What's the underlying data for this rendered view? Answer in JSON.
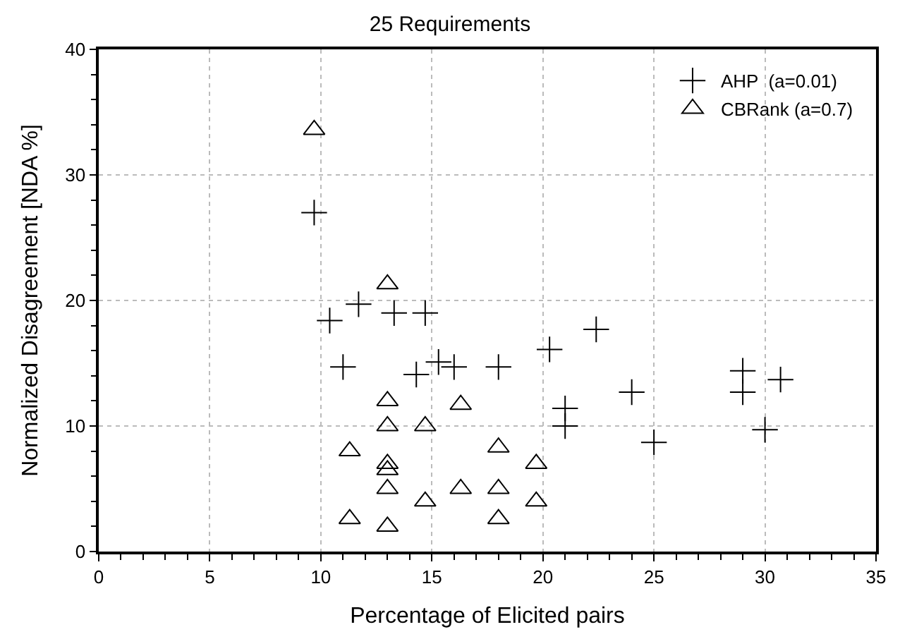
{
  "chart_data": {
    "type": "scatter",
    "title": "25 Requirements",
    "xlabel": "Percentage of Elicited pairs",
    "ylabel": "Normalized Disagreement [NDA %]",
    "xlim": [
      0,
      35
    ],
    "xticks": [
      0,
      5,
      10,
      15,
      20,
      25,
      30,
      35
    ],
    "ylim": [
      0,
      40
    ],
    "yticks": [
      0,
      10,
      20,
      30,
      40
    ],
    "grid": true,
    "legend": "top right",
    "series": [
      {
        "name": "AHP  (a=0.01)",
        "color": "#000000",
        "marker": "cross",
        "x": [
          9.7,
          10.4,
          11.7,
          13.3,
          14.7,
          11.0,
          14.3,
          15.3,
          16.0,
          18.0,
          20.3,
          22.4,
          21.0,
          21.0,
          24.0,
          25.0,
          29.0,
          29.0,
          30.7,
          30.0
        ],
        "values": [
          27.0,
          18.4,
          19.7,
          19.0,
          19.0,
          14.7,
          14.1,
          15.1,
          14.7,
          14.7,
          16.1,
          17.7,
          11.4,
          10.0,
          12.7,
          8.7,
          14.4,
          12.7,
          13.7,
          9.7
        ]
      },
      {
        "name": "CBRank (a=0.7)",
        "color": "#000000",
        "marker": "triangle",
        "x": [
          9.7,
          13.0,
          13.0,
          13.0,
          14.7,
          16.3,
          11.3,
          13.0,
          13.0,
          13.0,
          16.3,
          14.7,
          11.3,
          13.0,
          18.0,
          19.7,
          18.0,
          19.7,
          18.0
        ],
        "values": [
          33.6,
          21.3,
          12.0,
          10.0,
          10.0,
          11.7,
          8.0,
          7.0,
          6.5,
          5.0,
          5.0,
          4.0,
          2.6,
          2.0,
          8.3,
          7.0,
          5.0,
          4.0,
          2.6
        ]
      }
    ]
  }
}
